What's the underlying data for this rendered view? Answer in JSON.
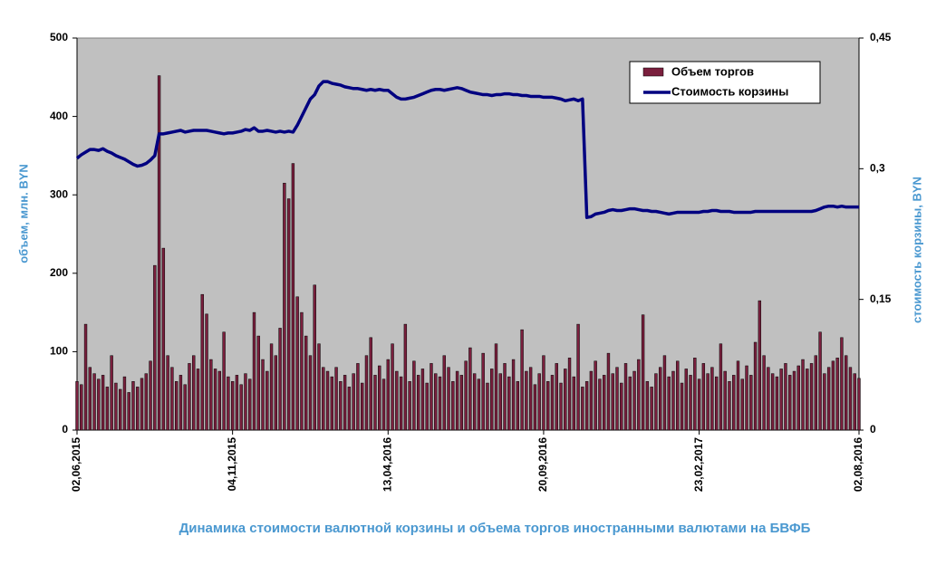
{
  "chart_data": {
    "type": "bar",
    "title": "Динамика стоимости валютной корзины и объема торгов иностранными валютами на БВФБ",
    "ylabel": "объем, млн. BYN",
    "y2label": "стоимость корзины, BYN",
    "categories": [
      "02,06,2015",
      null,
      null,
      null,
      null,
      null,
      null,
      null,
      null,
      null,
      null,
      null,
      null,
      null,
      null,
      null,
      null,
      null,
      null,
      null,
      null,
      null,
      null,
      null,
      null,
      null,
      null,
      null,
      null,
      null,
      null,
      null,
      null,
      null,
      null,
      null,
      "04,11,2015",
      null,
      null,
      null,
      null,
      null,
      null,
      null,
      null,
      null,
      null,
      null,
      null,
      null,
      null,
      null,
      null,
      null,
      null,
      null,
      null,
      null,
      null,
      null,
      null,
      null,
      null,
      null,
      null,
      null,
      null,
      null,
      null,
      null,
      null,
      null,
      "13,04,2016",
      null,
      null,
      null,
      null,
      null,
      null,
      null,
      null,
      null,
      null,
      null,
      null,
      null,
      null,
      null,
      null,
      null,
      null,
      null,
      null,
      null,
      null,
      null,
      null,
      null,
      null,
      null,
      null,
      null,
      null,
      null,
      null,
      null,
      null,
      null,
      "20,09,2016",
      null,
      null,
      null,
      null,
      null,
      null,
      null,
      null,
      null,
      null,
      null,
      null,
      null,
      null,
      null,
      null,
      null,
      null,
      null,
      null,
      null,
      null,
      null,
      null,
      null,
      null,
      null,
      null,
      null,
      null,
      null,
      null,
      null,
      null,
      null,
      "23,02,2017",
      null,
      null,
      null,
      null,
      null,
      null,
      null,
      null,
      null,
      null,
      null,
      null,
      null,
      null,
      null,
      null,
      null,
      null,
      null,
      null,
      null,
      null,
      null,
      null,
      null,
      null,
      null,
      null,
      null,
      null,
      null,
      null,
      null,
      null,
      null,
      null,
      "02,08,2016"
    ],
    "series": [
      {
        "name": "Объем торгов",
        "type": "bar",
        "color": "#7a1f3d",
        "values": [
          62,
          58,
          135,
          80,
          72,
          65,
          70,
          55,
          95,
          60,
          52,
          68,
          48,
          62,
          55,
          66,
          72,
          88,
          210,
          452,
          232,
          95,
          80,
          62,
          70,
          58,
          85,
          95,
          78,
          173,
          148,
          90,
          78,
          75,
          125,
          68,
          62,
          70,
          58,
          72,
          65,
          150,
          120,
          90,
          75,
          110,
          95,
          130,
          315,
          295,
          340,
          170,
          150,
          120,
          95,
          185,
          110,
          80,
          75,
          68,
          80,
          62,
          70,
          55,
          72,
          85,
          60,
          95,
          118,
          70,
          82,
          65,
          90,
          110,
          75,
          68,
          135,
          62,
          88,
          70,
          78,
          60,
          85,
          72,
          68,
          95,
          80,
          62,
          75,
          70,
          88,
          105,
          72,
          65,
          98,
          60,
          78,
          110,
          72,
          85,
          68,
          90,
          62,
          128,
          75,
          80,
          58,
          72,
          95,
          62,
          70,
          85,
          60,
          78,
          92,
          68,
          135,
          55,
          62,
          75,
          88,
          65,
          70,
          98,
          72,
          80,
          60,
          85,
          68,
          75,
          90,
          147,
          62,
          55,
          72,
          80,
          95,
          68,
          75,
          88,
          60,
          78,
          70,
          92,
          65,
          85,
          72,
          80,
          68,
          110,
          75,
          62,
          70,
          88,
          65,
          82,
          70,
          112,
          165,
          95,
          80,
          72,
          68,
          78,
          85,
          70,
          75,
          82,
          90,
          78,
          85,
          95,
          125,
          72,
          80,
          88,
          92,
          118,
          95,
          80,
          72,
          66
        ]
      },
      {
        "name": "Стоимость корзины",
        "type": "line",
        "axis": "y2",
        "color": "#000080",
        "values": [
          0.312,
          0.316,
          0.319,
          0.322,
          0.322,
          0.321,
          0.323,
          0.32,
          0.318,
          0.315,
          0.313,
          0.311,
          0.308,
          0.305,
          0.303,
          0.304,
          0.306,
          0.31,
          0.315,
          0.34,
          0.34,
          0.341,
          0.342,
          0.343,
          0.344,
          0.342,
          0.343,
          0.344,
          0.344,
          0.344,
          0.344,
          0.343,
          0.342,
          0.341,
          0.34,
          0.341,
          0.341,
          0.342,
          0.343,
          0.345,
          0.344,
          0.347,
          0.343,
          0.343,
          0.344,
          0.343,
          0.342,
          0.343,
          0.342,
          0.343,
          0.342,
          0.35,
          0.36,
          0.37,
          0.38,
          0.385,
          0.395,
          0.4,
          0.4,
          0.398,
          0.397,
          0.396,
          0.394,
          0.393,
          0.392,
          0.392,
          0.391,
          0.39,
          0.391,
          0.39,
          0.391,
          0.39,
          0.39,
          0.386,
          0.382,
          0.38,
          0.38,
          0.381,
          0.382,
          0.384,
          0.386,
          0.388,
          0.39,
          0.391,
          0.391,
          0.39,
          0.391,
          0.392,
          0.393,
          0.392,
          0.39,
          0.388,
          0.387,
          0.386,
          0.385,
          0.385,
          0.384,
          0.385,
          0.385,
          0.386,
          0.386,
          0.385,
          0.385,
          0.384,
          0.384,
          0.383,
          0.383,
          0.383,
          0.382,
          0.382,
          0.382,
          0.381,
          0.38,
          0.378,
          0.379,
          0.38,
          0.378,
          0.38,
          0.244,
          0.245,
          0.248,
          0.249,
          0.25,
          0.252,
          0.253,
          0.252,
          0.252,
          0.253,
          0.254,
          0.254,
          0.253,
          0.252,
          0.252,
          0.251,
          0.251,
          0.25,
          0.249,
          0.248,
          0.249,
          0.25,
          0.25,
          0.25,
          0.25,
          0.25,
          0.25,
          0.251,
          0.251,
          0.252,
          0.252,
          0.251,
          0.251,
          0.251,
          0.25,
          0.25,
          0.25,
          0.25,
          0.25,
          0.251,
          0.251,
          0.251,
          0.251,
          0.251,
          0.251,
          0.251,
          0.251,
          0.251,
          0.251,
          0.251,
          0.251,
          0.251,
          0.251,
          0.252,
          0.254,
          0.256,
          0.257,
          0.257,
          0.256,
          0.257,
          0.256,
          0.256,
          0.256,
          0.256
        ]
      }
    ],
    "ylim": [
      0,
      500
    ],
    "yticks": [
      0,
      100,
      200,
      300,
      400,
      500
    ],
    "y2lim": [
      0,
      0.45
    ],
    "y2ticks": [
      0,
      {
        "value": 0.15,
        "label": "0,15"
      },
      {
        "value": 0.3,
        "label": "0,3"
      },
      {
        "value": 0.45,
        "label": "0,45"
      }
    ],
    "grid": false,
    "legend": "upper right",
    "background": "#c0c0c0"
  }
}
